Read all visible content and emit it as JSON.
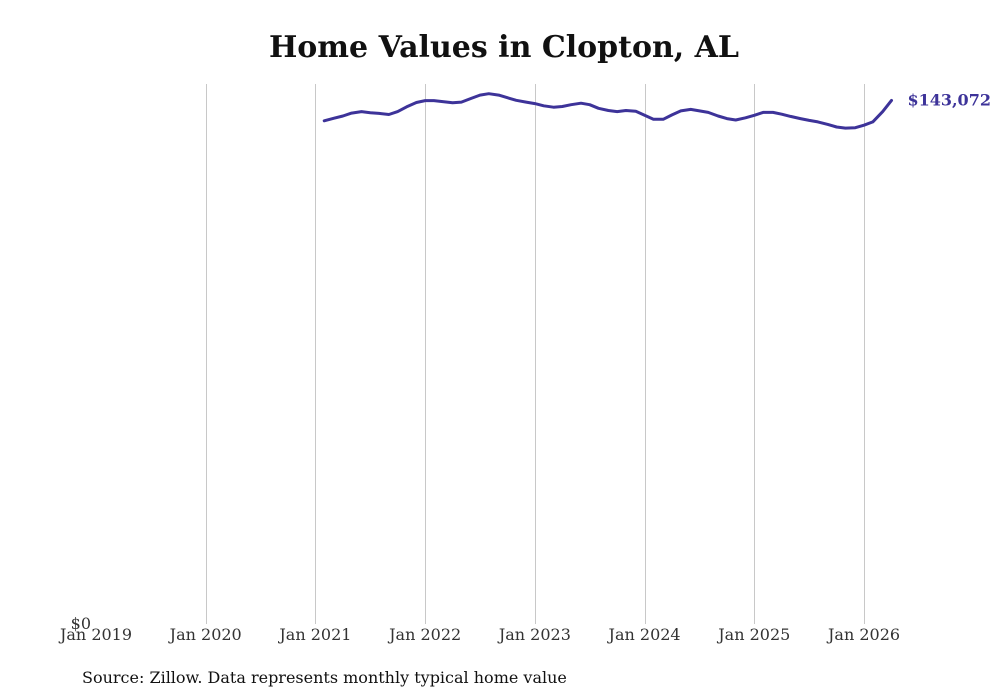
{
  "chart_data": {
    "type": "line",
    "title": "Home Values in Clopton, AL",
    "source": "Source: Zillow. Data represents monthly typical home value",
    "xlabel": "",
    "ylabel": "",
    "xlim": [
      2019.0,
      2026.1
    ],
    "ylim": [
      0,
      147000
    ],
    "y_tick_label": "$0",
    "x_ticks": [
      {
        "value": 2019,
        "label": "Jan 2019"
      },
      {
        "value": 2020,
        "label": "Jan 2020"
      },
      {
        "value": 2021,
        "label": "Jan 2021"
      },
      {
        "value": 2022,
        "label": "Jan 2022"
      },
      {
        "value": 2023,
        "label": "Jan 2023"
      },
      {
        "value": 2024,
        "label": "Jan 2024"
      },
      {
        "value": 2025,
        "label": "Jan 2025"
      },
      {
        "value": 2026,
        "label": "Jan 2026"
      }
    ],
    "grid": "vertical",
    "end_label": "$143,072",
    "series": [
      {
        "name": "Clopton, AL",
        "color": "#3d3399",
        "points": [
          [
            2021.08,
            137500
          ],
          [
            2021.17,
            138200
          ],
          [
            2021.25,
            138800
          ],
          [
            2021.33,
            139600
          ],
          [
            2021.42,
            140000
          ],
          [
            2021.5,
            139700
          ],
          [
            2021.58,
            139500
          ],
          [
            2021.67,
            139200
          ],
          [
            2021.75,
            140000
          ],
          [
            2021.83,
            141300
          ],
          [
            2021.92,
            142500
          ],
          [
            2022.0,
            143000
          ],
          [
            2022.08,
            143000
          ],
          [
            2022.17,
            142700
          ],
          [
            2022.25,
            142400
          ],
          [
            2022.33,
            142600
          ],
          [
            2022.42,
            143600
          ],
          [
            2022.5,
            144500
          ],
          [
            2022.58,
            144900
          ],
          [
            2022.67,
            144500
          ],
          [
            2022.75,
            143800
          ],
          [
            2022.83,
            143100
          ],
          [
            2022.92,
            142600
          ],
          [
            2023.0,
            142200
          ],
          [
            2023.08,
            141600
          ],
          [
            2023.17,
            141200
          ],
          [
            2023.25,
            141400
          ],
          [
            2023.33,
            141900
          ],
          [
            2023.42,
            142300
          ],
          [
            2023.5,
            141900
          ],
          [
            2023.58,
            140900
          ],
          [
            2023.67,
            140300
          ],
          [
            2023.75,
            140000
          ],
          [
            2023.83,
            140300
          ],
          [
            2023.92,
            140100
          ],
          [
            2024.0,
            139000
          ],
          [
            2024.08,
            137900
          ],
          [
            2024.17,
            137900
          ],
          [
            2024.25,
            139100
          ],
          [
            2024.33,
            140200
          ],
          [
            2024.42,
            140600
          ],
          [
            2024.5,
            140200
          ],
          [
            2024.58,
            139800
          ],
          [
            2024.67,
            138800
          ],
          [
            2024.75,
            138100
          ],
          [
            2024.83,
            137700
          ],
          [
            2024.92,
            138300
          ],
          [
            2025.0,
            139000
          ],
          [
            2025.08,
            139800
          ],
          [
            2025.17,
            139800
          ],
          [
            2025.25,
            139300
          ],
          [
            2025.33,
            138700
          ],
          [
            2025.42,
            138100
          ],
          [
            2025.5,
            137600
          ],
          [
            2025.58,
            137200
          ],
          [
            2025.67,
            136500
          ],
          [
            2025.75,
            135800
          ],
          [
            2025.83,
            135500
          ],
          [
            2025.92,
            135600
          ],
          [
            2026.0,
            136300
          ],
          [
            2026.08,
            137200
          ],
          [
            2026.17,
            140000
          ],
          [
            2026.25,
            143072
          ]
        ]
      }
    ]
  }
}
